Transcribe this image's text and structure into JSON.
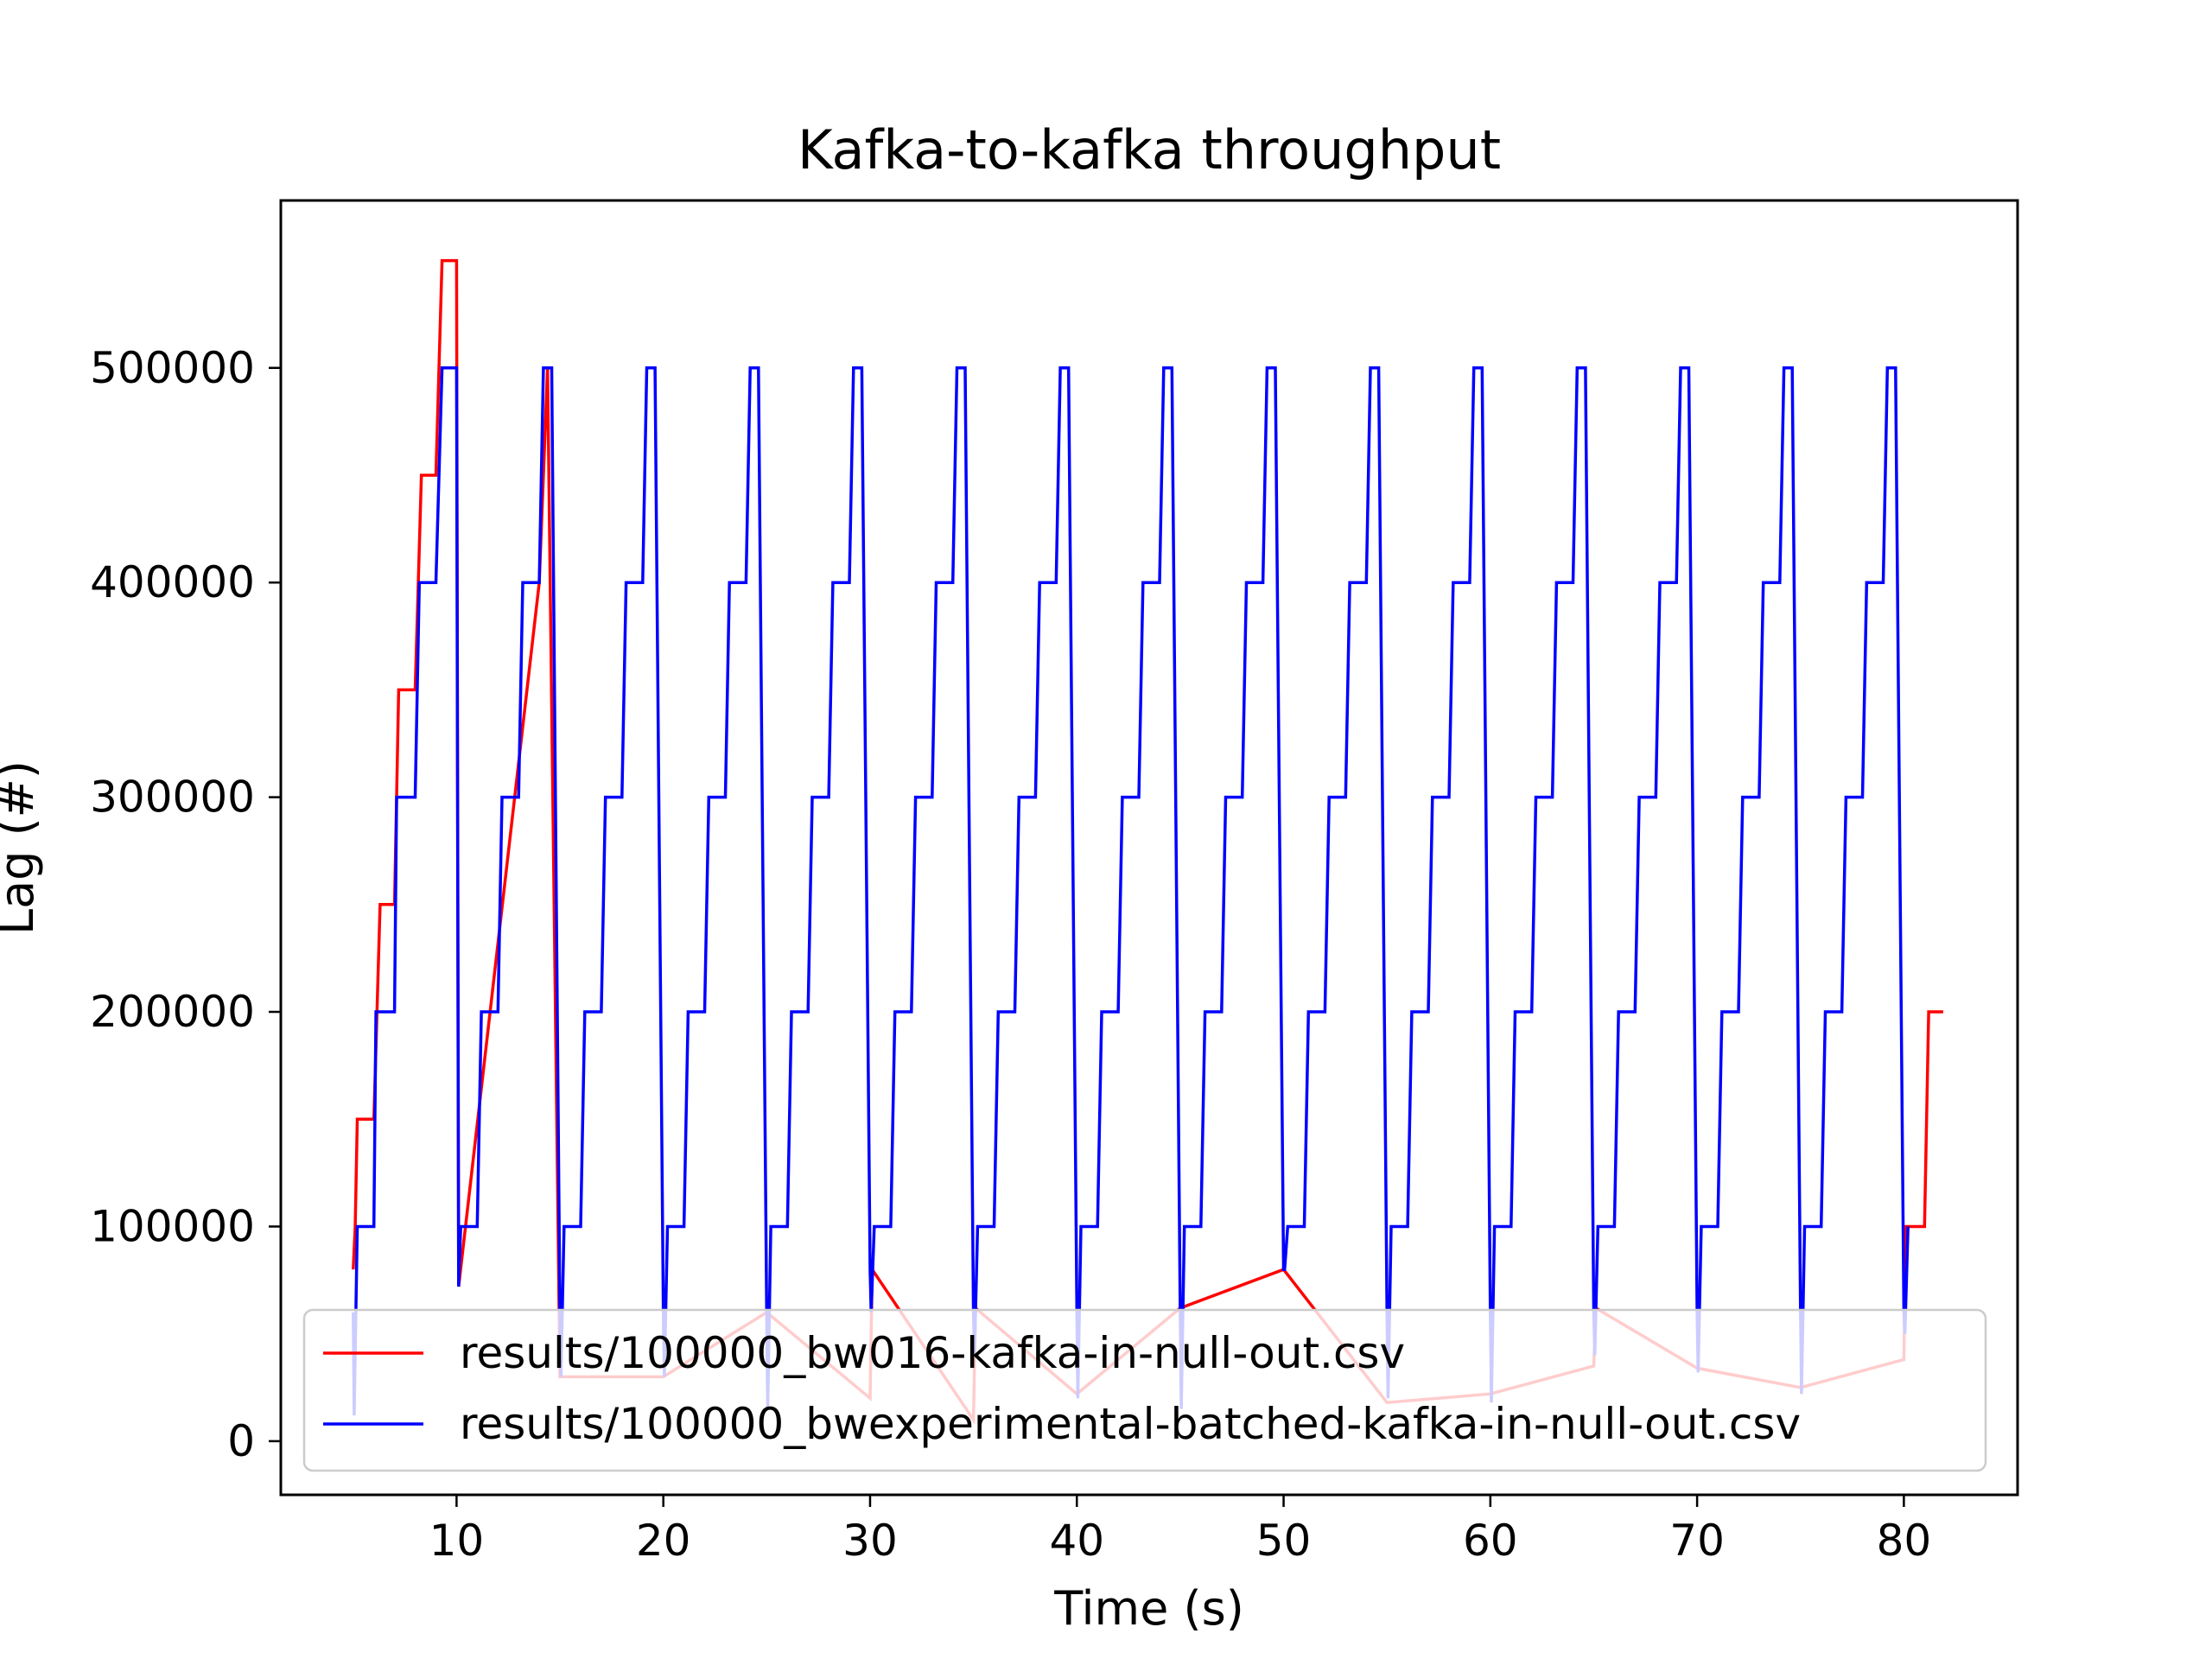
{
  "chart_data": {
    "type": "line",
    "title": "Kafka-to-kafka throughput",
    "xlabel": "Time (s)",
    "ylabel": "Lag (#)",
    "xlim": [
      1.5,
      85.5
    ],
    "ylim": [
      -25000,
      578000
    ],
    "xticks": [
      10,
      20,
      30,
      40,
      50,
      60,
      70,
      80
    ],
    "yticks": [
      0,
      100000,
      200000,
      300000,
      400000,
      500000
    ],
    "xtick_labels": [
      "10",
      "20",
      "30",
      "40",
      "50",
      "60",
      "70",
      "80"
    ],
    "ytick_labels": [
      "0",
      "100000",
      "200000",
      "300000",
      "400000",
      "500000"
    ],
    "grid": false,
    "legend_position": "lower-center",
    "series": [
      {
        "name": "results/100000_bw016-kafka-in-null-out.csv",
        "color": "#ff0000",
        "x": [
          5.0,
          5.1,
          5.2,
          6.0,
          6.3,
          7.0,
          7.2,
          8.0,
          8.3,
          9.0,
          9.3,
          10.0,
          10.1,
          14.0,
          14.4,
          15.0,
          20.0,
          25.0,
          30.0,
          30.1,
          35.0,
          35.1,
          40.0,
          45.0,
          50.0,
          55.0,
          60.0,
          65.0,
          65.1,
          70.0,
          75.0,
          80.0,
          80.1,
          81.0,
          81.2,
          81.9
        ],
        "y": [
          80000,
          100000,
          150000,
          150000,
          250000,
          250000,
          350000,
          350000,
          450000,
          450000,
          550000,
          550000,
          72000,
          400000,
          500000,
          30000,
          30000,
          60000,
          20000,
          80000,
          10000,
          62000,
          22000,
          62000,
          80000,
          18000,
          22000,
          35000,
          62000,
          34000,
          25000,
          38000,
          100000,
          100000,
          200000,
          200000
        ]
      },
      {
        "name": "results/100000_bwexperimental-batched-kafka-in-null-out.csv",
        "color": "#0000ff",
        "x": [
          5.0,
          5.05,
          5.2,
          6.0,
          6.1,
          7.0,
          7.1,
          8.0,
          8.2,
          9.0,
          9.3,
          10.0,
          10.1,
          10.2,
          11.0,
          11.2,
          12.0,
          12.2,
          13.0,
          13.2,
          14.0,
          14.2,
          14.6,
          15.0,
          15.05,
          15.2,
          16.0,
          16.2,
          17.0,
          17.2,
          18.0,
          18.2,
          19.0,
          19.2,
          19.6,
          20.0,
          20.05,
          20.2,
          21.0,
          21.2,
          22.0,
          22.2,
          23.0,
          23.2,
          24.0,
          24.2,
          24.6,
          25.0,
          25.05,
          25.2,
          26.0,
          26.2,
          27.0,
          27.2,
          28.0,
          28.2,
          29.0,
          29.2,
          29.6,
          30.0,
          30.05,
          30.2,
          31.0,
          31.2,
          32.0,
          32.2,
          33.0,
          33.2,
          34.0,
          34.2,
          34.6,
          35.0,
          35.05,
          35.2,
          36.0,
          36.2,
          37.0,
          37.2,
          38.0,
          38.2,
          39.0,
          39.2,
          39.6,
          40.0,
          40.05,
          40.2,
          41.0,
          41.2,
          42.0,
          42.2,
          43.0,
          43.2,
          44.0,
          44.2,
          44.6,
          45.0,
          45.05,
          45.2,
          46.0,
          46.2,
          47.0,
          47.2,
          48.0,
          48.2,
          49.0,
          49.2,
          49.6,
          50.0,
          50.05,
          50.2,
          51.0,
          51.2,
          52.0,
          52.2,
          53.0,
          53.2,
          54.0,
          54.2,
          54.6,
          55.0,
          55.05,
          55.2,
          56.0,
          56.2,
          57.0,
          57.2,
          58.0,
          58.2,
          59.0,
          59.2,
          59.6,
          60.0,
          60.05,
          60.2,
          61.0,
          61.2,
          62.0,
          62.2,
          63.0,
          63.2,
          64.0,
          64.2,
          64.6,
          65.0,
          65.05,
          65.2,
          66.0,
          66.2,
          67.0,
          67.2,
          68.0,
          68.2,
          69.0,
          69.2,
          69.6,
          70.0,
          70.05,
          70.2,
          71.0,
          71.2,
          72.0,
          72.2,
          73.0,
          73.2,
          74.0,
          74.2,
          74.6,
          75.0,
          75.05,
          75.2,
          76.0,
          76.2,
          77.0,
          77.2,
          78.0,
          78.2,
          79.0,
          79.2,
          79.6,
          80.0,
          80.05,
          80.2
        ],
        "y": [
          60000,
          12000,
          100000,
          100000,
          200000,
          200000,
          300000,
          300000,
          400000,
          400000,
          500000,
          500000,
          72000,
          100000,
          100000,
          200000,
          200000,
          300000,
          300000,
          400000,
          400000,
          500000,
          500000,
          60000,
          30000,
          100000,
          100000,
          200000,
          200000,
          300000,
          300000,
          400000,
          400000,
          500000,
          500000,
          60000,
          30000,
          100000,
          100000,
          200000,
          200000,
          300000,
          300000,
          400000,
          400000,
          500000,
          500000,
          60000,
          15000,
          100000,
          100000,
          200000,
          200000,
          300000,
          300000,
          400000,
          400000,
          500000,
          500000,
          80000,
          60000,
          100000,
          100000,
          200000,
          200000,
          300000,
          300000,
          400000,
          400000,
          500000,
          500000,
          60000,
          40000,
          100000,
          100000,
          200000,
          200000,
          300000,
          300000,
          400000,
          400000,
          500000,
          500000,
          60000,
          20000,
          100000,
          100000,
          200000,
          200000,
          300000,
          300000,
          400000,
          400000,
          500000,
          500000,
          60000,
          15000,
          100000,
          100000,
          200000,
          200000,
          300000,
          300000,
          400000,
          400000,
          500000,
          500000,
          80000,
          80000,
          100000,
          100000,
          200000,
          200000,
          300000,
          300000,
          400000,
          400000,
          500000,
          500000,
          60000,
          20000,
          100000,
          100000,
          200000,
          200000,
          300000,
          300000,
          400000,
          400000,
          500000,
          500000,
          60000,
          18000,
          100000,
          100000,
          200000,
          200000,
          300000,
          300000,
          400000,
          400000,
          500000,
          500000,
          60000,
          40000,
          100000,
          100000,
          200000,
          200000,
          300000,
          300000,
          400000,
          400000,
          500000,
          500000,
          60000,
          32000,
          100000,
          100000,
          200000,
          200000,
          300000,
          300000,
          400000,
          400000,
          500000,
          500000,
          60000,
          22000,
          100000,
          100000,
          200000,
          200000,
          300000,
          300000,
          400000,
          400000,
          500000,
          500000,
          60000,
          50000,
          100000
        ]
      }
    ]
  }
}
